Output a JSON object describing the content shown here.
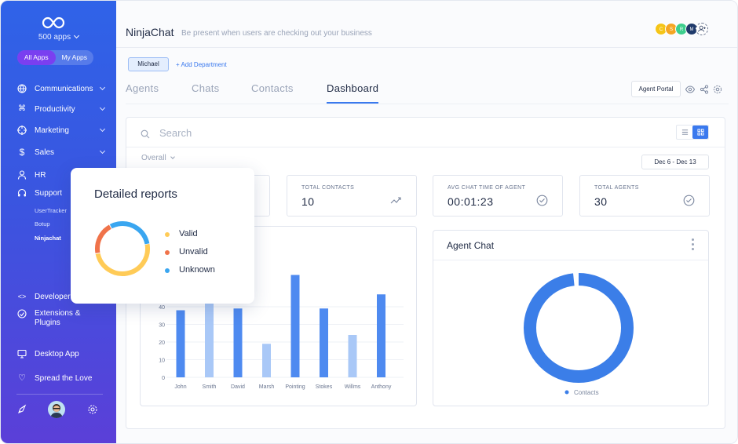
{
  "sidebar": {
    "logo_icon": "infinity-icon",
    "apps_count": "500 apps",
    "toggle": {
      "all": "All Apps",
      "mine": "My Apps"
    },
    "items": [
      {
        "label": "Communications",
        "icon": "globe-icon"
      },
      {
        "label": "Productivity",
        "icon": "command-icon"
      },
      {
        "label": "Marketing",
        "icon": "target-icon"
      },
      {
        "label": "Sales",
        "icon": "dollar-icon"
      },
      {
        "label": "HR",
        "icon": "person-icon"
      },
      {
        "label": "Support",
        "icon": "headset-icon"
      },
      {
        "label": "Developer",
        "icon": "code-icon"
      },
      {
        "label": "Extensions & Plugins",
        "icon": "plugin-icon"
      },
      {
        "label": "Desktop App",
        "icon": "monitor-icon"
      },
      {
        "label": "Spread the Love",
        "icon": "heart-icon"
      }
    ],
    "support_sub": [
      "UserTracker",
      "Botup",
      "Ninjachat"
    ],
    "footer_icons": [
      "rocket-icon",
      "avatar",
      "gear-icon"
    ]
  },
  "header": {
    "title": "NinjaChat",
    "subtitle": "Be present when users are checking out your business",
    "avatars": [
      "C",
      "S",
      "R",
      "M"
    ],
    "avatar_colors": [
      "#f5c518",
      "#f5a623",
      "#3ecf8e",
      "#3b8ded",
      "#1f3a6b"
    ]
  },
  "department": {
    "chip": "Michael",
    "add": "+ Add Department"
  },
  "tabs": [
    "Agents",
    "Chats",
    "Contacts",
    "Dashboard"
  ],
  "active_tab": "Dashboard",
  "agent_portal": "Agent Portal",
  "search": {
    "placeholder": "Search"
  },
  "filter": {
    "overall": "Overall",
    "date_range": "Dec 6 - Dec 13"
  },
  "stats": [
    {
      "title": "TOTAL CONTACTS",
      "value": "10",
      "icon": "trend-up-icon"
    },
    {
      "title": "AVG CHAT TIME OF AGENT",
      "value": "00:01:23",
      "icon": "check-circle-icon"
    },
    {
      "title": "TOTAL AGENTS",
      "value": "30",
      "icon": "check-circle-icon"
    }
  ],
  "detailed_reports": {
    "title": "Detailed reports",
    "legend": [
      {
        "label": "Valid",
        "color": "#ffcb57"
      },
      {
        "label": "Unvalid",
        "color": "#f0734a"
      },
      {
        "label": "Unknown",
        "color": "#3aa6f0"
      }
    ],
    "shares": [
      0.5,
      0.2,
      0.3
    ]
  },
  "agent_chat": {
    "title": "Agent Chat",
    "legend": "Contacts",
    "color": "#3b7ee8"
  },
  "chart_data": {
    "type": "bar",
    "categories": [
      "John",
      "Smith",
      "David",
      "Marsh",
      "Pointing",
      "Stokes",
      "Willms",
      "Anthony"
    ],
    "values": [
      38,
      46,
      39,
      19,
      58,
      39,
      24,
      47
    ],
    "highlight": [
      false,
      true,
      false,
      true,
      false,
      false,
      true,
      false
    ],
    "y_ticks": [
      0,
      10,
      20,
      30,
      40
    ],
    "ylim": [
      0,
      60
    ],
    "colors": {
      "primary": "#4e8af0",
      "light": "#a9c8f7"
    }
  }
}
